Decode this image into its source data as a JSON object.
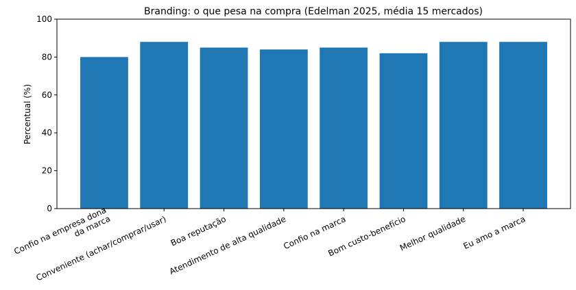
{
  "chart_data": {
    "type": "bar",
    "title": "Branding: o que pesa na compra (Edelman 2025, média 15 mercados)",
    "y_label": "Percentual (%)",
    "categories": [
      "Confio na empresa dona\nda marca",
      "Conveniente (achar/comprar/usar)",
      "Boa reputação",
      "Atendimento de alta qualidade",
      "Confio na marca",
      "Bom custo-benefício",
      "Melhor qualidade",
      "Eu amo a marca"
    ],
    "values": [
      80,
      88,
      85,
      84,
      85,
      82,
      88,
      88
    ],
    "color": "#1f77b4",
    "ylim": [
      0,
      100
    ],
    "yticks": [
      0,
      20,
      40,
      60,
      80,
      100
    ],
    "grid": false
  }
}
